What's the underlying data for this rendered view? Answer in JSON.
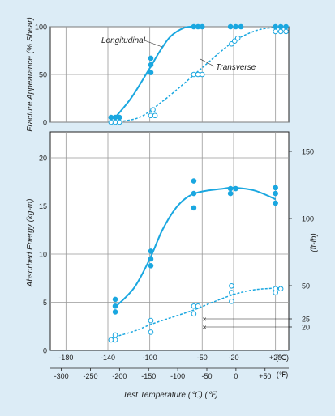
{
  "colors": {
    "background": "#dcecf6",
    "plot_bg": "#ffffff",
    "series": "#1aa7e0",
    "grid": "#999999",
    "text": "#222222"
  },
  "chart_data": [
    {
      "type": "scatter",
      "ylabel": "Fracture Appearance (% Shear)",
      "yticks": [
        "0",
        "50",
        "100"
      ],
      "ylim": [
        0,
        100
      ],
      "xlim": [
        -210,
        50
      ],
      "grid": true,
      "series": [
        {
          "name": "Longitudinal",
          "marker": "filled",
          "line": "solid",
          "points": [
            [
              -137,
              5
            ],
            [
              -133,
              5
            ],
            [
              -129,
              5
            ],
            [
              -99,
              52
            ],
            [
              -99,
              60
            ],
            [
              -99,
              67
            ],
            [
              -58,
              100
            ],
            [
              -54,
              100
            ],
            [
              -50,
              100
            ],
            [
              -23,
              100
            ],
            [
              -18,
              100
            ],
            [
              -13,
              100
            ],
            [
              20,
              100
            ],
            [
              25,
              100
            ],
            [
              30,
              100
            ]
          ],
          "curve": [
            [
              -133,
              5
            ],
            [
              -118,
              25
            ],
            [
              -102,
              53
            ],
            [
              -90,
              75
            ],
            [
              -80,
              90
            ],
            [
              -67,
              99
            ],
            [
              -58,
              100
            ]
          ]
        },
        {
          "name": "Transverse",
          "marker": "open",
          "line": "dashed",
          "points": [
            [
              -137,
              0
            ],
            [
              -133,
              0
            ],
            [
              -129,
              0
            ],
            [
              -99,
              7
            ],
            [
              -95,
              7
            ],
            [
              -97,
              13
            ],
            [
              -58,
              50
            ],
            [
              -54,
              50
            ],
            [
              -50,
              50
            ],
            [
              -22,
              82
            ],
            [
              -19,
              85
            ],
            [
              -16,
              88
            ],
            [
              20,
              95
            ],
            [
              25,
              95
            ],
            [
              30,
              95
            ]
          ],
          "curve": [
            [
              -133,
              0
            ],
            [
              -110,
              5
            ],
            [
              -90,
              20
            ],
            [
              -70,
              38
            ],
            [
              -50,
              57
            ],
            [
              -30,
              76
            ],
            [
              -15,
              88
            ],
            [
              5,
              97
            ],
            [
              28,
              100
            ]
          ]
        }
      ]
    },
    {
      "type": "scatter",
      "xlabel": "Test Temperature (℃) (℉)",
      "ylabel": "Absorbed Energy  (kg-m)",
      "ylabel_right": "(ft-lb)",
      "yticks": [
        "0",
        "5",
        "10",
        "15",
        "20"
      ],
      "ylim": [
        0,
        22
      ],
      "yticks_right": [
        "150",
        "100",
        "50",
        "25",
        "20"
      ],
      "xticks_celsius": [
        "-180",
        "-140",
        "-100",
        "-50",
        "-20",
        "+20",
        "(℃)"
      ],
      "xticks_fahrenheit": [
        "-300",
        "-250",
        "-200",
        "-150",
        "-100",
        "-50",
        "0",
        "+50",
        "(℉)"
      ],
      "xlim": [
        -210,
        50
      ],
      "grid": true,
      "series": [
        {
          "marker": "filled",
          "line": "solid",
          "points": [
            [
              -133,
              4.0
            ],
            [
              -133,
              4.6
            ],
            [
              -133,
              5.3
            ],
            [
              -99,
              8.8
            ],
            [
              -99,
              9.5
            ],
            [
              -99,
              10.3
            ],
            [
              -58,
              14.8
            ],
            [
              -58,
              16.3
            ],
            [
              -58,
              17.6
            ],
            [
              -23,
              16.3
            ],
            [
              -23,
              16.8
            ],
            [
              -18,
              16.8
            ],
            [
              20,
              15.3
            ],
            [
              20,
              16.3
            ],
            [
              20,
              16.9
            ]
          ],
          "curve": [
            [
              -133,
              4.5
            ],
            [
              -115,
              6.5
            ],
            [
              -100,
              9.5
            ],
            [
              -88,
              12.5
            ],
            [
              -75,
              14.8
            ],
            [
              -63,
              16.0
            ],
            [
              -50,
              16.5
            ],
            [
              -30,
              16.8
            ],
            [
              -20,
              16.9
            ],
            [
              0,
              16.6
            ],
            [
              20,
              15.7
            ]
          ]
        },
        {
          "marker": "open",
          "line": "dashed",
          "points": [
            [
              -137,
              1.1
            ],
            [
              -133,
              1.1
            ],
            [
              -133,
              1.6
            ],
            [
              -99,
              1.9
            ],
            [
              -99,
              3.1
            ],
            [
              -58,
              3.8
            ],
            [
              -58,
              4.6
            ],
            [
              -54,
              4.6
            ],
            [
              -22,
              5.1
            ],
            [
              -22,
              6.0
            ],
            [
              -22,
              6.7
            ],
            [
              20,
              6.0
            ],
            [
              20,
              6.4
            ],
            [
              25,
              6.4
            ]
          ],
          "curve": [
            [
              -137,
              1.3
            ],
            [
              -115,
              2.0
            ],
            [
              -99,
              2.7
            ],
            [
              -80,
              3.4
            ],
            [
              -58,
              4.2
            ],
            [
              -40,
              5.0
            ],
            [
              -20,
              5.8
            ],
            [
              0,
              6.3
            ],
            [
              25,
              6.5
            ]
          ]
        }
      ],
      "annotations": [
        {
          "text": "25",
          "y": 3.6,
          "marker": "×"
        },
        {
          "text": "20",
          "y": 2.7,
          "marker": "×"
        }
      ]
    }
  ]
}
